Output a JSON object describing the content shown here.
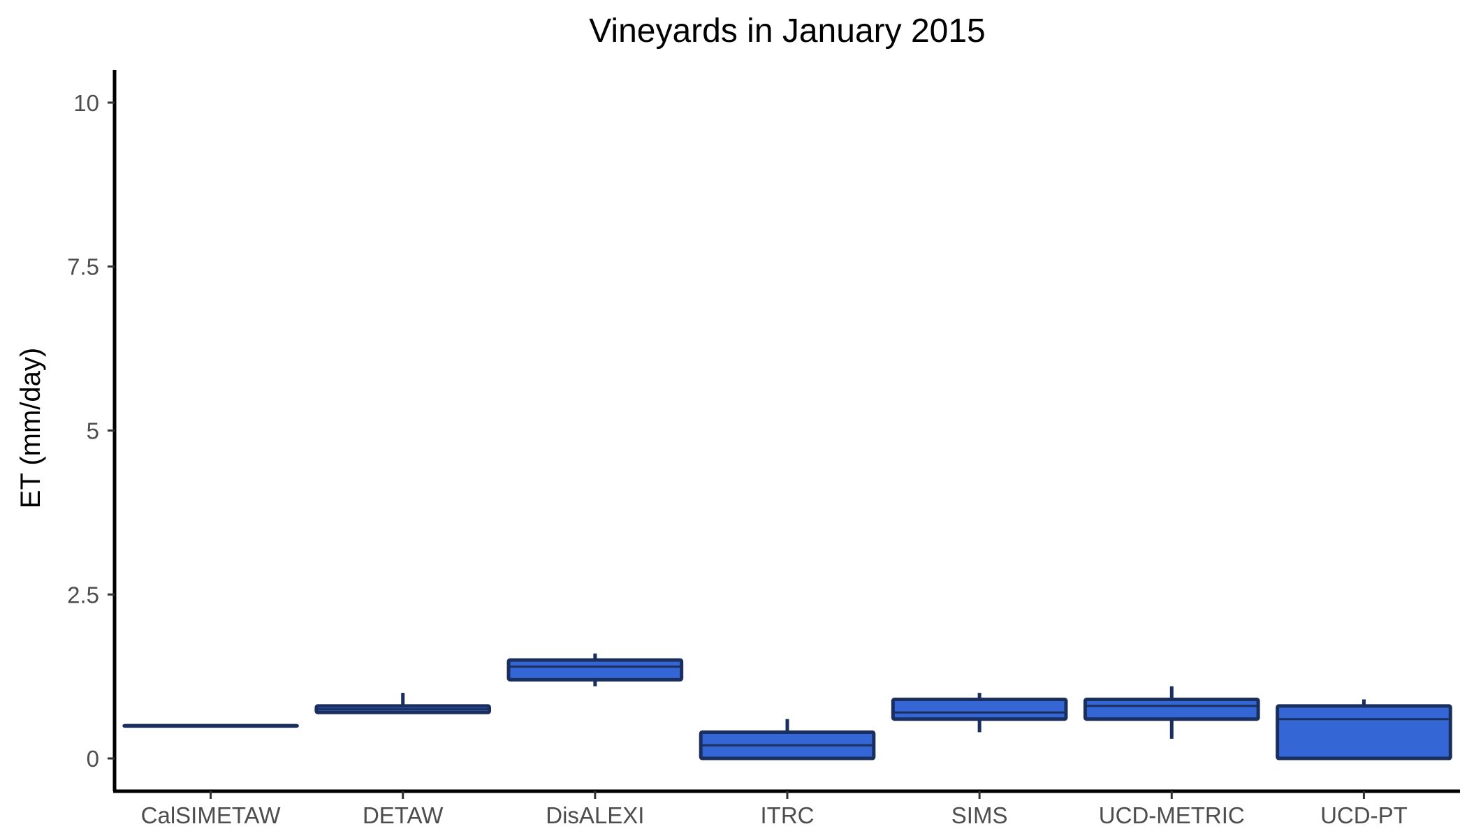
{
  "chart_data": {
    "type": "box",
    "title": "Vineyards in January 2015",
    "xlabel": "",
    "ylabel": "ET (mm/day)",
    "ylim": [
      -0.5,
      10.5
    ],
    "yticks": [
      0,
      2.5,
      5,
      7.5,
      10
    ],
    "ytick_labels": [
      "0",
      "2.5",
      "5",
      "7.5",
      "10"
    ],
    "grid": false,
    "legend": "none",
    "box_fill": "#3566d6",
    "box_stroke": "#1b2f5e",
    "categories": [
      "CalSIMETAW",
      "DETAW",
      "DisALEXI",
      "ITRC",
      "SIMS",
      "UCD-METRIC",
      "UCD-PT"
    ],
    "boxes": [
      {
        "min": 0.5,
        "q1": 0.5,
        "median": 0.5,
        "q3": 0.5,
        "max": 0.5
      },
      {
        "min": 0.7,
        "q1": 0.7,
        "median": 0.75,
        "q3": 0.8,
        "max": 1.0
      },
      {
        "min": 1.1,
        "q1": 1.2,
        "median": 1.4,
        "q3": 1.5,
        "max": 1.6
      },
      {
        "min": 0.0,
        "q1": 0.0,
        "median": 0.2,
        "q3": 0.4,
        "max": 0.6
      },
      {
        "min": 0.4,
        "q1": 0.6,
        "median": 0.7,
        "q3": 0.9,
        "max": 1.0
      },
      {
        "min": 0.3,
        "q1": 0.6,
        "median": 0.8,
        "q3": 0.9,
        "max": 1.1
      },
      {
        "min": 0.0,
        "q1": 0.0,
        "median": 0.6,
        "q3": 0.8,
        "max": 0.9
      }
    ]
  }
}
